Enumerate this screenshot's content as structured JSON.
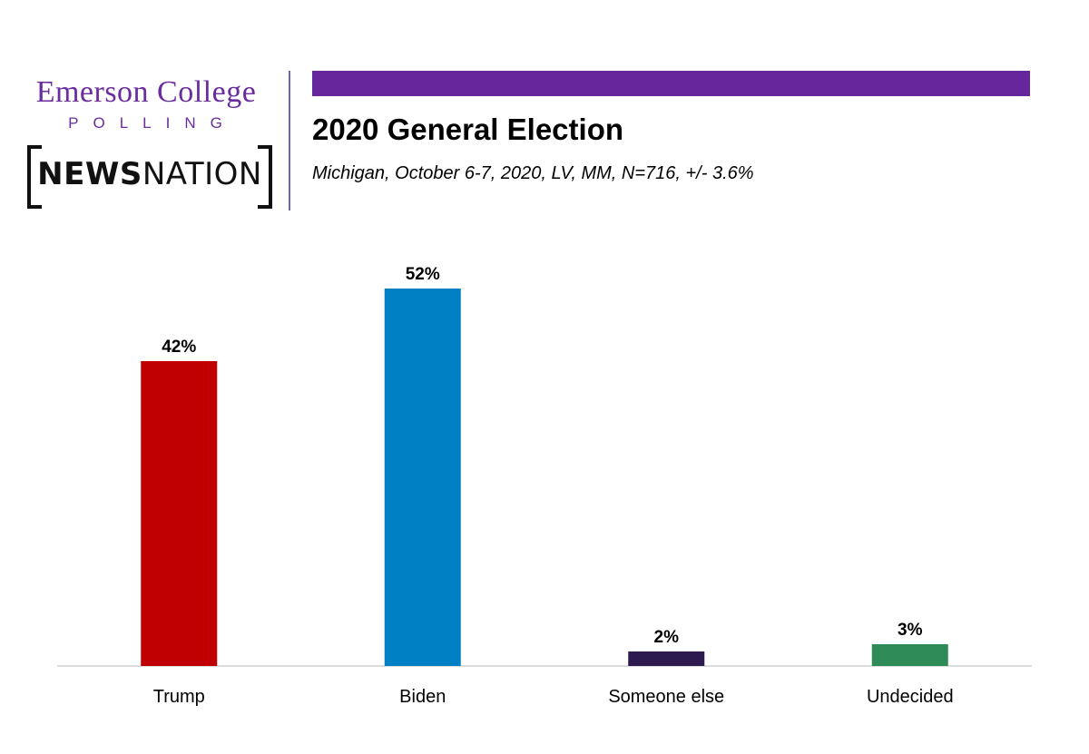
{
  "logos": {
    "emerson_name": "Emerson College",
    "emerson_sub": "POLLING",
    "newsnation_bold": "NEWS",
    "newsnation_light": "NATION"
  },
  "header": {
    "title": "2020 General Election",
    "subtitle": "Michigan, October 6-7, 2020, LV, MM, N=716, +/-  3.6%"
  },
  "colors": {
    "accent_purple": "#66279c",
    "trump": "#c00000",
    "biden": "#0080c4",
    "someone_else": "#2d1a4e",
    "undecided": "#2e8b57"
  },
  "chart_data": {
    "type": "bar",
    "categories": [
      "Trump",
      "Biden",
      "Someone else",
      "Undecided"
    ],
    "values": [
      42,
      52,
      2,
      3
    ],
    "value_labels": [
      "42%",
      "52%",
      "2%",
      "3%"
    ],
    "bar_colors": [
      "#c00000",
      "#0080c4",
      "#2d1a4e",
      "#2e8b57"
    ],
    "ylim": [
      0,
      52
    ],
    "grid": false,
    "legend": "none"
  }
}
